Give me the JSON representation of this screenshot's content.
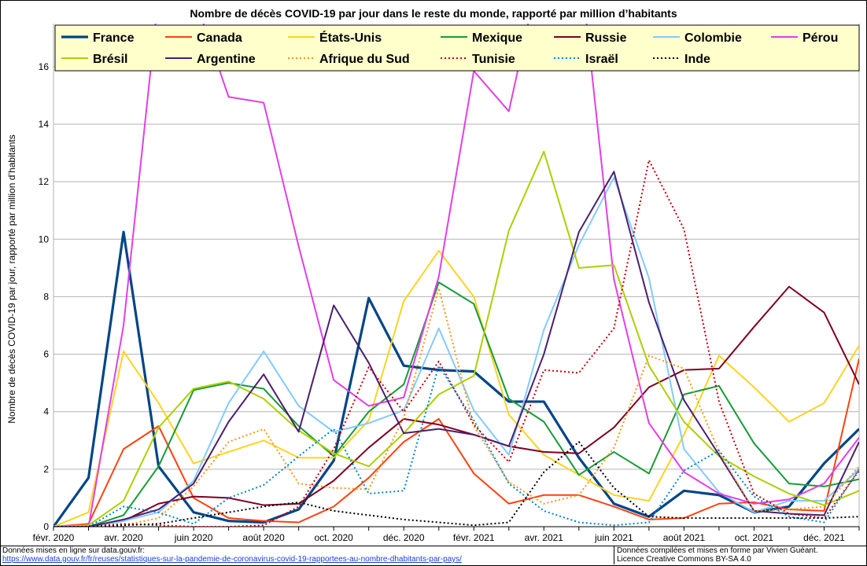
{
  "chart_data": {
    "type": "line",
    "title": "Nombre de décès COVID-19 par jour dans le reste du monde, rapporté par million d’habitants",
    "ylabel": "Nombre de décès COVID-19 par jour, rapporté par million d’habitants",
    "xlabel": "",
    "ylim": [
      0,
      17.5
    ],
    "yticks": [
      0,
      2,
      4,
      6,
      8,
      10,
      12,
      14,
      16
    ],
    "xticks": [
      "févr. 2020",
      "avr. 2020",
      "juin 2020",
      "août 2020",
      "oct. 2020",
      "déc. 2020",
      "févr. 2021",
      "avr. 2021",
      "juin 2021",
      "août 2021",
      "oct. 2021",
      "déc. 2021"
    ],
    "x_months": [
      "2020-02",
      "2020-03",
      "2020-04",
      "2020-05",
      "2020-06",
      "2020-07",
      "2020-08",
      "2020-09",
      "2020-10",
      "2020-11",
      "2020-12",
      "2021-01",
      "2021-02",
      "2021-03",
      "2021-04",
      "2021-05",
      "2021-06",
      "2021-07",
      "2021-08",
      "2021-09",
      "2021-10",
      "2021-11",
      "2021-12",
      "2022-01"
    ],
    "grid": "horizontal",
    "legend_position": "top",
    "series": [
      {
        "name": "France",
        "color": "#004586",
        "style": "solid",
        "width": 3.2,
        "values": [
          0,
          1.7,
          10.25,
          2.1,
          0.5,
          0.2,
          0.15,
          0.6,
          2.3,
          7.95,
          5.6,
          5.45,
          5.4,
          4.35,
          4.35,
          2.4,
          0.8,
          0.35,
          1.25,
          1.1,
          0.5,
          0.7,
          2.2,
          3.4
        ]
      },
      {
        "name": "Canada",
        "color": "#ff420e",
        "style": "solid",
        "width": 2,
        "values": [
          0,
          0.1,
          2.7,
          3.5,
          1.0,
          0.3,
          0.2,
          0.15,
          0.7,
          1.7,
          2.95,
          3.75,
          1.85,
          0.8,
          1.1,
          1.1,
          0.7,
          0.25,
          0.3,
          0.8,
          0.85,
          0.6,
          0.55,
          5.85
        ]
      },
      {
        "name": "États-Unis",
        "color": "#ffd320",
        "style": "solid",
        "width": 2,
        "values": [
          0,
          0.5,
          6.1,
          4.3,
          2.2,
          2.6,
          3.0,
          2.4,
          2.4,
          3.7,
          7.85,
          9.6,
          8.0,
          3.9,
          2.5,
          1.8,
          1.1,
          0.9,
          3.2,
          5.95,
          4.85,
          3.65,
          4.3,
          6.3
        ]
      },
      {
        "name": "Mexique",
        "color": "#169c37",
        "style": "solid",
        "width": 2,
        "values": [
          0,
          0,
          0.4,
          2.1,
          4.75,
          5.0,
          4.8,
          3.5,
          2.45,
          4.0,
          4.95,
          8.5,
          7.75,
          4.45,
          3.65,
          1.8,
          2.6,
          1.85,
          4.6,
          4.9,
          2.9,
          1.5,
          1.4,
          1.65
        ]
      },
      {
        "name": "Russie",
        "color": "#7e0021",
        "style": "solid",
        "width": 2,
        "values": [
          0,
          0,
          0.2,
          0.8,
          1.05,
          1.0,
          0.75,
          0.8,
          1.6,
          2.75,
          3.75,
          3.55,
          3.2,
          2.8,
          2.6,
          2.55,
          3.45,
          4.85,
          5.45,
          5.5,
          6.95,
          8.35,
          7.45,
          4.95
        ]
      },
      {
        "name": "Colombie",
        "color": "#83caff",
        "style": "solid",
        "width": 2,
        "values": [
          0,
          0,
          0.2,
          0.5,
          1.6,
          4.3,
          6.1,
          4.2,
          3.3,
          3.6,
          4.05,
          6.9,
          4.05,
          2.5,
          6.85,
          9.8,
          12.15,
          8.65,
          2.7,
          1.2,
          0.5,
          0.9,
          0.9,
          2.0
        ]
      },
      {
        "name": "Pérou",
        "color": "#e23fe6",
        "style": "solid",
        "width": 2,
        "values": [
          0,
          0,
          7.0,
          18.5,
          18.5,
          14.95,
          14.75,
          9.75,
          5.1,
          4.2,
          4.5,
          8.7,
          15.85,
          14.45,
          20.0,
          20.0,
          8.6,
          3.6,
          1.9,
          1.15,
          0.8,
          0.95,
          1.5,
          3.1
        ]
      },
      {
        "name": "Brésil",
        "color": "#aecf00",
        "style": "solid",
        "width": 2,
        "values": [
          0,
          0.05,
          0.9,
          3.45,
          4.8,
          5.05,
          4.45,
          3.35,
          2.55,
          2.1,
          3.25,
          4.6,
          5.25,
          10.3,
          13.05,
          9.0,
          9.1,
          5.6,
          3.65,
          2.45,
          1.75,
          1.15,
          0.75,
          1.25
        ]
      },
      {
        "name": "Argentine",
        "color": "#4b1f6f",
        "style": "solid",
        "width": 2,
        "values": [
          0,
          0,
          0.25,
          0.6,
          1.5,
          3.65,
          5.3,
          3.3,
          7.7,
          5.7,
          3.25,
          3.4,
          3.2,
          2.8,
          6.0,
          10.25,
          12.35,
          7.8,
          4.4,
          2.5,
          0.55,
          0.45,
          0.4,
          2.95
        ]
      },
      {
        "name": "Afrique du Sud",
        "color": "#ff950e",
        "style": "dotted",
        "width": 2,
        "values": [
          0,
          0,
          0.05,
          0.3,
          1.4,
          2.95,
          3.4,
          1.5,
          1.35,
          1.3,
          3.8,
          8.3,
          3.5,
          1.55,
          0.8,
          1.1,
          2.75,
          5.95,
          5.5,
          2.6,
          0.55,
          0.6,
          0.7,
          2.1
        ]
      },
      {
        "name": "Tunisie",
        "color": "#c5000b",
        "style": "dotted",
        "width": 2,
        "values": [
          0,
          0,
          0.1,
          0.05,
          0,
          0,
          0.05,
          0.7,
          2.7,
          5.55,
          4.0,
          5.75,
          3.55,
          2.25,
          5.45,
          5.35,
          6.9,
          12.75,
          10.35,
          4.35,
          1.15,
          0.45,
          0.3,
          1.95
        ]
      },
      {
        "name": "Israël",
        "color": "#0084d1",
        "style": "dotted",
        "width": 2,
        "values": [
          0,
          0,
          0.7,
          0.5,
          0.1,
          1.0,
          1.45,
          2.45,
          3.4,
          1.15,
          1.25,
          5.6,
          3.7,
          1.5,
          0.55,
          0.15,
          0.05,
          0.15,
          1.95,
          2.65,
          1.05,
          0.35,
          0.15,
          2.0
        ]
      },
      {
        "name": "Inde",
        "color": "#000000",
        "style": "dotted",
        "width": 2,
        "values": [
          0,
          0,
          0.05,
          0.1,
          0.3,
          0.5,
          0.7,
          0.85,
          0.55,
          0.4,
          0.25,
          0.15,
          0.05,
          0.15,
          1.9,
          2.95,
          1.35,
          0.35,
          0.3,
          0.3,
          0.3,
          0.3,
          0.3,
          0.35
        ]
      }
    ]
  },
  "footer": {
    "source_line1": "Données mises en ligne sur data.gouv.fr:",
    "source_url": "https://www.data.gouv.fr/fr/reuses/statistiques-sur-la-pandemie-de-coronavirus-covid-19-rapportees-au-nombre-dhabitants-par-pays/",
    "credit_line1": "Données compilées et mises en forme par Vivien Guéant.",
    "credit_line2": "Licence Creative Commons BY-SA 4.0"
  }
}
